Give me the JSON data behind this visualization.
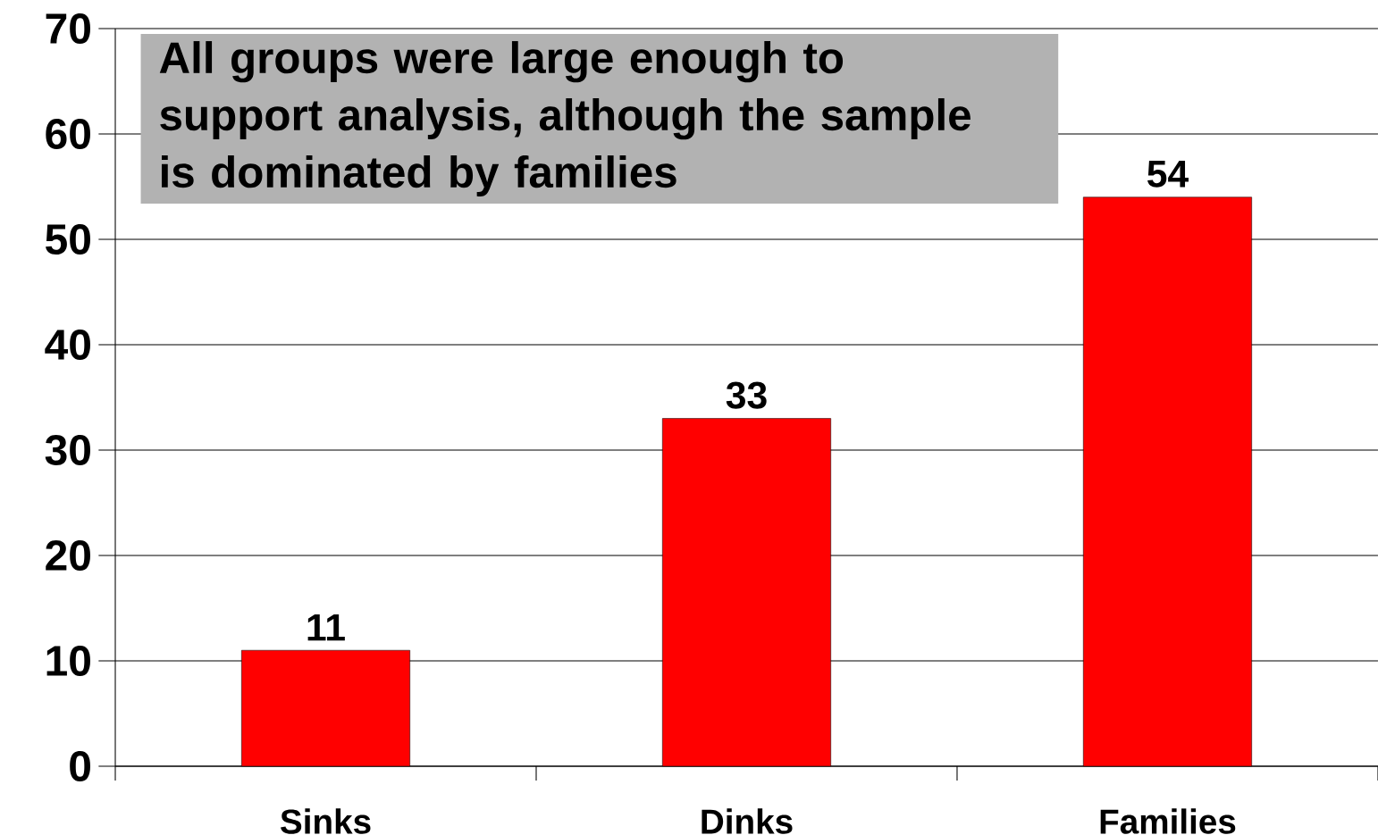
{
  "chart_data": {
    "type": "bar",
    "categories": [
      "Sinks",
      "Dinks",
      "Families"
    ],
    "values": [
      11,
      33,
      54
    ],
    "color": "#ff0000",
    "ylim": [
      0,
      70
    ],
    "yticks": [
      0,
      10,
      20,
      30,
      40,
      50,
      60,
      70
    ],
    "grid": "y",
    "data_labels": true,
    "annotations": [
      "All groups were large enough to support analysis, although the sample is dominated by families"
    ]
  }
}
